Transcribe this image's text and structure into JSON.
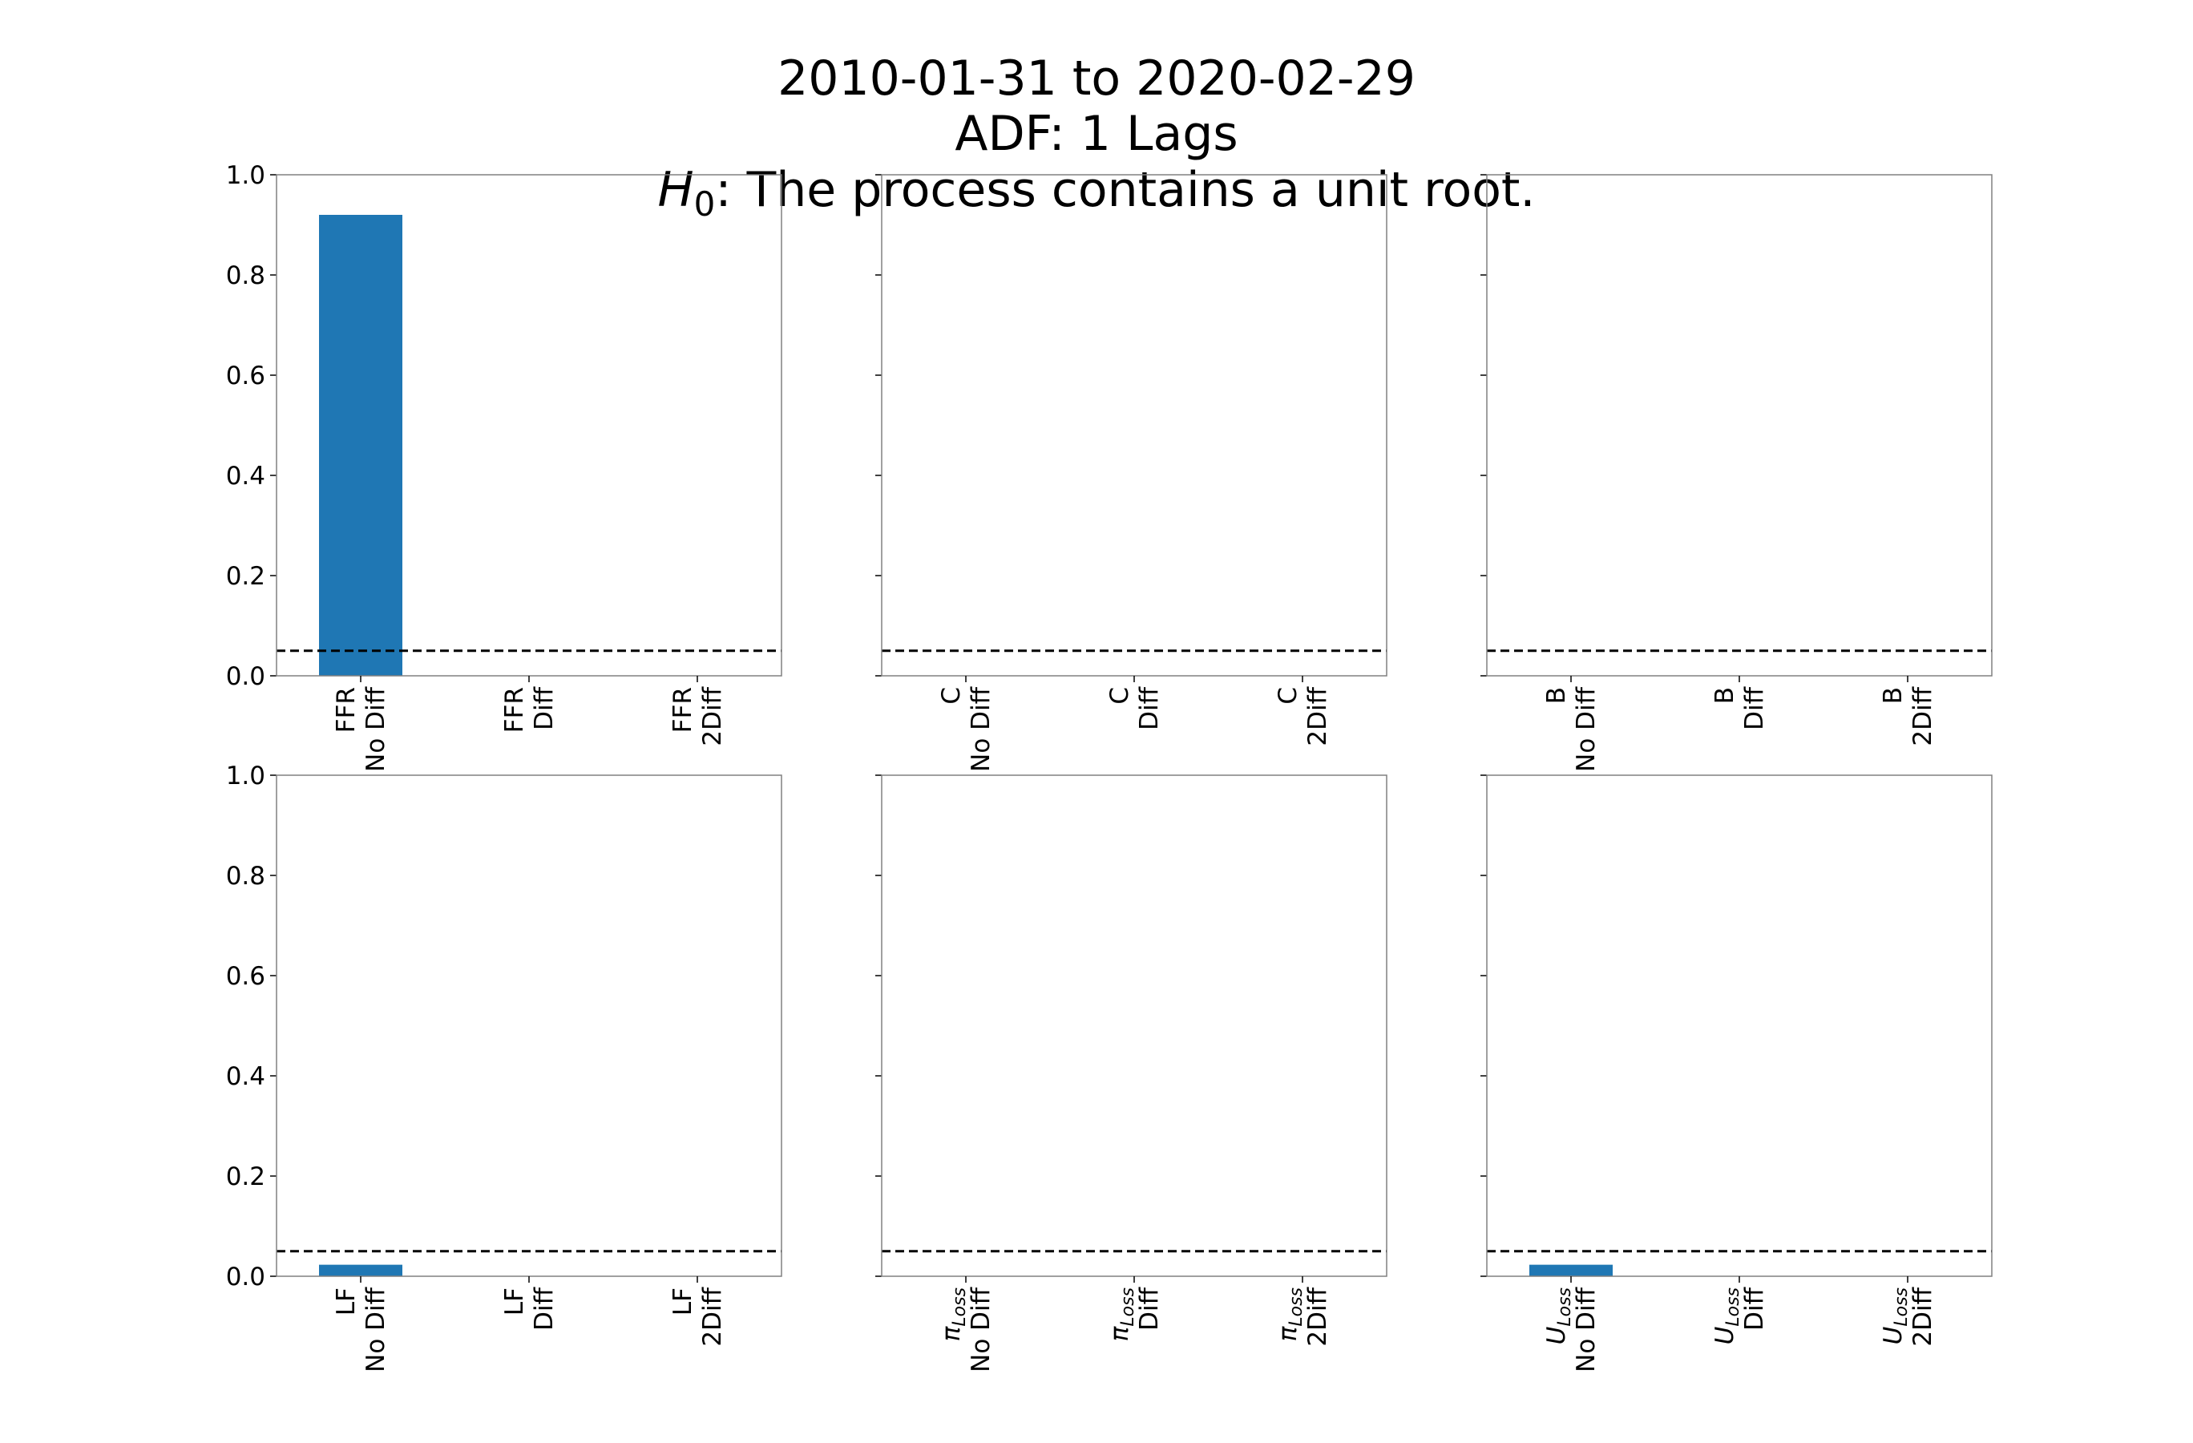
{
  "figure": {
    "title_lines": [
      "2010-01-31 to 2020-02-29",
      "ADF: 1 Lags"
    ],
    "hypothesis": {
      "symbol": "H",
      "subscript": "0",
      "text": "The process contains a unit root."
    }
  },
  "colors": {
    "bar": "#1f77b4",
    "threshold_line": "#000000",
    "axes": "#808080"
  },
  "chart_data": [
    {
      "type": "bar",
      "variable": {
        "base": "FFR"
      },
      "categories": [
        "No Diff",
        "Diff",
        "2Diff"
      ],
      "values": [
        0.92,
        0.0,
        0.0
      ],
      "threshold": 0.05,
      "ylim": [
        0,
        1
      ],
      "yticks": [
        "0.0",
        "0.2",
        "0.4",
        "0.6",
        "0.8",
        "1.0"
      ],
      "show_ytick_labels": true
    },
    {
      "type": "bar",
      "variable": {
        "base": "C"
      },
      "categories": [
        "No Diff",
        "Diff",
        "2Diff"
      ],
      "values": [
        0.0,
        0.0,
        0.0
      ],
      "threshold": 0.05,
      "ylim": [
        0,
        1
      ],
      "yticks": [
        "0.0",
        "0.2",
        "0.4",
        "0.6",
        "0.8",
        "1.0"
      ],
      "show_ytick_labels": false
    },
    {
      "type": "bar",
      "variable": {
        "base": "B"
      },
      "categories": [
        "No Diff",
        "Diff",
        "2Diff"
      ],
      "values": [
        0.0,
        0.0,
        0.0
      ],
      "threshold": 0.05,
      "ylim": [
        0,
        1
      ],
      "yticks": [
        "0.0",
        "0.2",
        "0.4",
        "0.6",
        "0.8",
        "1.0"
      ],
      "show_ytick_labels": false
    },
    {
      "type": "bar",
      "variable": {
        "base": "LF"
      },
      "categories": [
        "No Diff",
        "Diff",
        "2Diff"
      ],
      "values": [
        0.023,
        0.0,
        0.0
      ],
      "threshold": 0.05,
      "ylim": [
        0,
        1
      ],
      "yticks": [
        "0.0",
        "0.2",
        "0.4",
        "0.6",
        "0.8",
        "1.0"
      ],
      "show_ytick_labels": true
    },
    {
      "type": "bar",
      "variable": {
        "base": "π",
        "sub": "Loss"
      },
      "categories": [
        "No Diff",
        "Diff",
        "2Diff"
      ],
      "values": [
        0.0,
        0.0,
        0.0
      ],
      "threshold": 0.05,
      "ylim": [
        0,
        1
      ],
      "yticks": [
        "0.0",
        "0.2",
        "0.4",
        "0.6",
        "0.8",
        "1.0"
      ],
      "show_ytick_labels": false
    },
    {
      "type": "bar",
      "variable": {
        "base": "U",
        "sub": "Loss"
      },
      "categories": [
        "No Diff",
        "Diff",
        "2Diff"
      ],
      "values": [
        0.023,
        0.0,
        0.0
      ],
      "threshold": 0.05,
      "ylim": [
        0,
        1
      ],
      "yticks": [
        "0.0",
        "0.2",
        "0.4",
        "0.6",
        "0.8",
        "1.0"
      ],
      "show_ytick_labels": false
    }
  ]
}
